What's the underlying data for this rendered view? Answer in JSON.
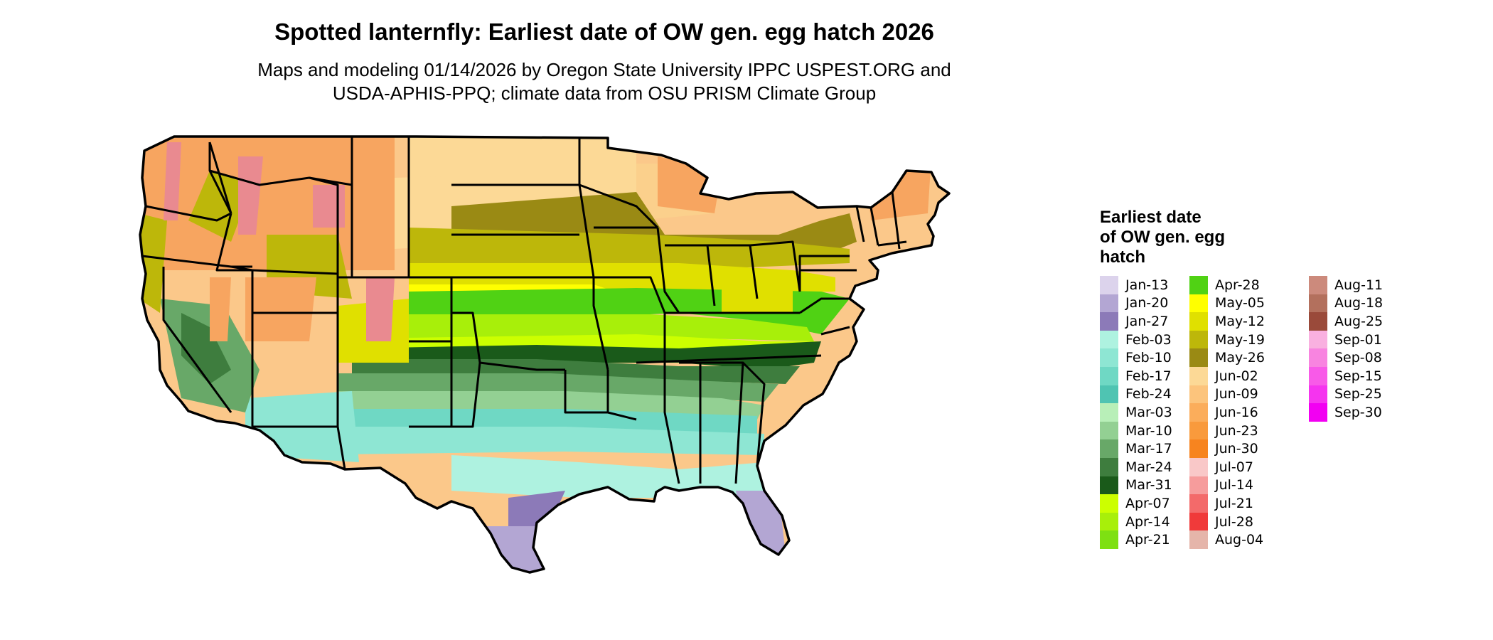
{
  "title": "Spotted lanternfly: Earliest date of OW gen. egg hatch 2026",
  "subtitle_lines": [
    "Maps and modeling 01/14/2026 by Oregon State University IPPC USPEST.ORG and",
    "USDA-APHIS-PPQ; climate data from OSU PRISM Climate Group"
  ],
  "legend": {
    "title_lines": [
      "Earliest date",
      "of OW gen. egg",
      "hatch"
    ],
    "columns": [
      [
        {
          "label": "Jan-13",
          "color": "#dcd3ec"
        },
        {
          "label": "Jan-20",
          "color": "#b3a6d3"
        },
        {
          "label": "Jan-27",
          "color": "#8c7ab8"
        },
        {
          "label": "Feb-03",
          "color": "#aef2e0"
        },
        {
          "label": "Feb-10",
          "color": "#8ee6d3"
        },
        {
          "label": "Feb-17",
          "color": "#6fd8c4"
        },
        {
          "label": "Feb-24",
          "color": "#4fc4b2"
        },
        {
          "label": "Mar-03",
          "color": "#b8efb8"
        },
        {
          "label": "Mar-10",
          "color": "#93d093"
        },
        {
          "label": "Mar-17",
          "color": "#68a868"
        },
        {
          "label": "Mar-24",
          "color": "#3e7d3e"
        },
        {
          "label": "Mar-31",
          "color": "#1a5a1a"
        },
        {
          "label": "Apr-07",
          "color": "#ccff00"
        },
        {
          "label": "Apr-14",
          "color": "#a8ef0a"
        },
        {
          "label": "Apr-21",
          "color": "#7ee012"
        }
      ],
      [
        {
          "label": "Apr-28",
          "color": "#50d214"
        },
        {
          "label": "May-05",
          "color": "#ffff00"
        },
        {
          "label": "May-12",
          "color": "#e0e000"
        },
        {
          "label": "May-19",
          "color": "#bdb70a"
        },
        {
          "label": "May-26",
          "color": "#9a8a14"
        },
        {
          "label": "Jun-02",
          "color": "#fcd996"
        },
        {
          "label": "Jun-09",
          "color": "#fcc47c"
        },
        {
          "label": "Jun-16",
          "color": "#fbad5b"
        },
        {
          "label": "Jun-23",
          "color": "#f99a3c"
        },
        {
          "label": "Jun-30",
          "color": "#f7841f"
        },
        {
          "label": "Jul-07",
          "color": "#f9c8c8"
        },
        {
          "label": "Jul-14",
          "color": "#f69c9c"
        },
        {
          "label": "Jul-21",
          "color": "#f36a6a"
        },
        {
          "label": "Jul-28",
          "color": "#f03a3a"
        },
        {
          "label": "Aug-04",
          "color": "#e5b5aa"
        }
      ],
      [
        {
          "label": "Aug-11",
          "color": "#cc8a7c"
        },
        {
          "label": "Aug-18",
          "color": "#b3705d"
        },
        {
          "label": "Aug-25",
          "color": "#9a4a3a"
        },
        {
          "label": "Sep-01",
          "color": "#f9b0e0"
        },
        {
          "label": "Sep-08",
          "color": "#f884e0"
        },
        {
          "label": "Sep-15",
          "color": "#f85ae8"
        },
        {
          "label": "Sep-25",
          "color": "#f534ef"
        },
        {
          "label": "Sep-30",
          "color": "#f200f2"
        }
      ]
    ]
  }
}
